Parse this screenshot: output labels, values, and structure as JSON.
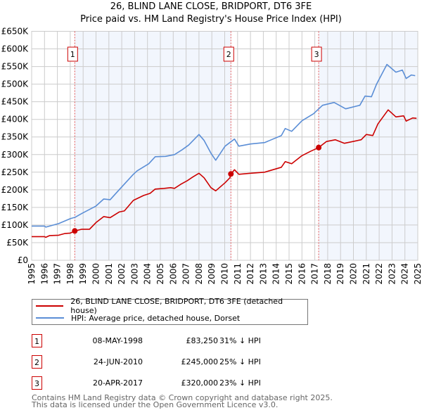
{
  "title_line1": "26, BLIND LANE CLOSE, BRIDPORT, DT6 3FE",
  "title_line2": "Price paid vs. HM Land Registry's House Price Index (HPI)",
  "colors": {
    "property": "#cc0000",
    "hpi": "#5b8ed6",
    "shade": "#f2f6fd",
    "grid": "#cccccc"
  },
  "chart_data": {
    "type": "line",
    "title": "Price paid vs. HM Land Registry's House Price Index (HPI)",
    "xlabel": "",
    "ylabel": "",
    "xlim": [
      1995,
      2025
    ],
    "ylim": [
      0,
      650000
    ],
    "grid": true,
    "x_ticks": [
      "1995",
      "1996",
      "1997",
      "1998",
      "1999",
      "2000",
      "2001",
      "2002",
      "2003",
      "2004",
      "2005",
      "2006",
      "2007",
      "2008",
      "2009",
      "2010",
      "2011",
      "2012",
      "2013",
      "2014",
      "2015",
      "2016",
      "2017",
      "2018",
      "2019",
      "2020",
      "2021",
      "2022",
      "2023",
      "2024",
      "2025"
    ],
    "y_ticks": [
      {
        "value": 0,
        "label": "£0"
      },
      {
        "value": 50000,
        "label": "£50K"
      },
      {
        "value": 100000,
        "label": "£100K"
      },
      {
        "value": 150000,
        "label": "£150K"
      },
      {
        "value": 200000,
        "label": "£200K"
      },
      {
        "value": 250000,
        "label": "£250K"
      },
      {
        "value": 300000,
        "label": "£300K"
      },
      {
        "value": 350000,
        "label": "£350K"
      },
      {
        "value": 400000,
        "label": "£400K"
      },
      {
        "value": 450000,
        "label": "£450K"
      },
      {
        "value": 500000,
        "label": "£500K"
      },
      {
        "value": 550000,
        "label": "£550K"
      },
      {
        "value": 600000,
        "label": "£600K"
      },
      {
        "value": 650000,
        "label": "£650K"
      }
    ],
    "series": [
      {
        "name": "26, BLIND LANE CLOSE, BRIDPORT, DT6 3FE (detached house)",
        "color": "#cc0000",
        "x": [
          1995,
          1996,
          1996.1,
          1996.4,
          1997.1,
          1997.6,
          1998.0,
          1998.37,
          1998.9,
          1999.5,
          2000.0,
          2000.6,
          2001.1,
          2001.8,
          2002.2,
          2002.9,
          2003.7,
          2004.2,
          2004.6,
          2005.3,
          2005.8,
          2006.1,
          2006.6,
          2007.1,
          2007.5,
          2008.0,
          2008.4,
          2008.93,
          2009.3,
          2010.03,
          2010.4,
          2010.48,
          2010.76,
          2011.1,
          2012.0,
          2013.1,
          2014.4,
          2014.7,
          2015.2,
          2016.0,
          2016.7,
          2017.3,
          2017.9,
          2018.6,
          2019.3,
          2020.6,
          2021.0,
          2021.5,
          2021.9,
          2022.7,
          2023.3,
          2023.9,
          2024.1,
          2024.6,
          2024.9
        ],
        "y": [
          67000,
          67000,
          65000,
          70000,
          71000,
          76000,
          77000,
          83250,
          88000,
          88000,
          107000,
          124000,
          121000,
          137000,
          140000,
          170000,
          184000,
          190000,
          202000,
          204000,
          206000,
          204000,
          216000,
          226000,
          236000,
          247000,
          234000,
          206000,
          197000,
          220000,
          234000,
          245000,
          257000,
          244000,
          247000,
          250000,
          264000,
          280000,
          274000,
          297000,
          310000,
          320000,
          337000,
          342000,
          332000,
          342000,
          357000,
          354000,
          387000,
          427000,
          407000,
          410000,
          395000,
          404000,
          403000
        ]
      },
      {
        "name": "HPI: Average price, detached house, Dorset",
        "color": "#5b8ed6",
        "x": [
          1995,
          1996,
          1996.1,
          1997.1,
          1998.0,
          1998.37,
          1998.9,
          2000.0,
          2000.6,
          2001.1,
          2001.8,
          2002.9,
          2003.2,
          2004.1,
          2004.6,
          2005.4,
          2006.1,
          2006.7,
          2007.2,
          2008.0,
          2008.4,
          2008.93,
          2009.3,
          2010.03,
          2010.76,
          2011.1,
          2012.0,
          2013.1,
          2014.4,
          2014.7,
          2015.2,
          2016.0,
          2016.9,
          2017.6,
          2018.5,
          2019.4,
          2020.5,
          2020.9,
          2021.4,
          2021.8,
          2022.6,
          2023.3,
          2023.8,
          2024.1,
          2024.5,
          2024.8
        ],
        "y": [
          97000,
          97000,
          94000,
          104000,
          118000,
          122000,
          133000,
          154000,
          174000,
          172000,
          200000,
          244000,
          254000,
          274000,
          294000,
          295000,
          300000,
          314000,
          327000,
          357000,
          340000,
          304000,
          284000,
          324000,
          344000,
          324000,
          330000,
          334000,
          354000,
          374000,
          366000,
          396000,
          416000,
          440000,
          448000,
          430000,
          440000,
          466000,
          464000,
          500000,
          556000,
          534000,
          540000,
          516000,
          526000,
          524000
        ]
      }
    ],
    "annotations": [
      {
        "label": "1",
        "x": 1998.35,
        "price": 83250
      },
      {
        "label": "2",
        "x": 2010.48,
        "price": 245000
      },
      {
        "label": "3",
        "x": 2017.3,
        "price": 320000
      }
    ],
    "legend_position": "below"
  },
  "legend": [
    {
      "label": "26, BLIND LANE CLOSE, BRIDPORT, DT6 3FE (detached house)"
    },
    {
      "label": "HPI: Average price, detached house, Dorset"
    }
  ],
  "transactions": [
    {
      "num": "1",
      "date": "08-MAY-1998",
      "price": "£83,250",
      "hpi": "31% ↓ HPI"
    },
    {
      "num": "2",
      "date": "24-JUN-2010",
      "price": "£245,000",
      "hpi": "25% ↓ HPI"
    },
    {
      "num": "3",
      "date": "20-APR-2017",
      "price": "£320,000",
      "hpi": "23% ↓ HPI"
    }
  ],
  "footer": {
    "line1": "Contains HM Land Registry data © Crown copyright and database right 2025.",
    "line2": "This data is licensed under the Open Government Licence v3.0."
  }
}
